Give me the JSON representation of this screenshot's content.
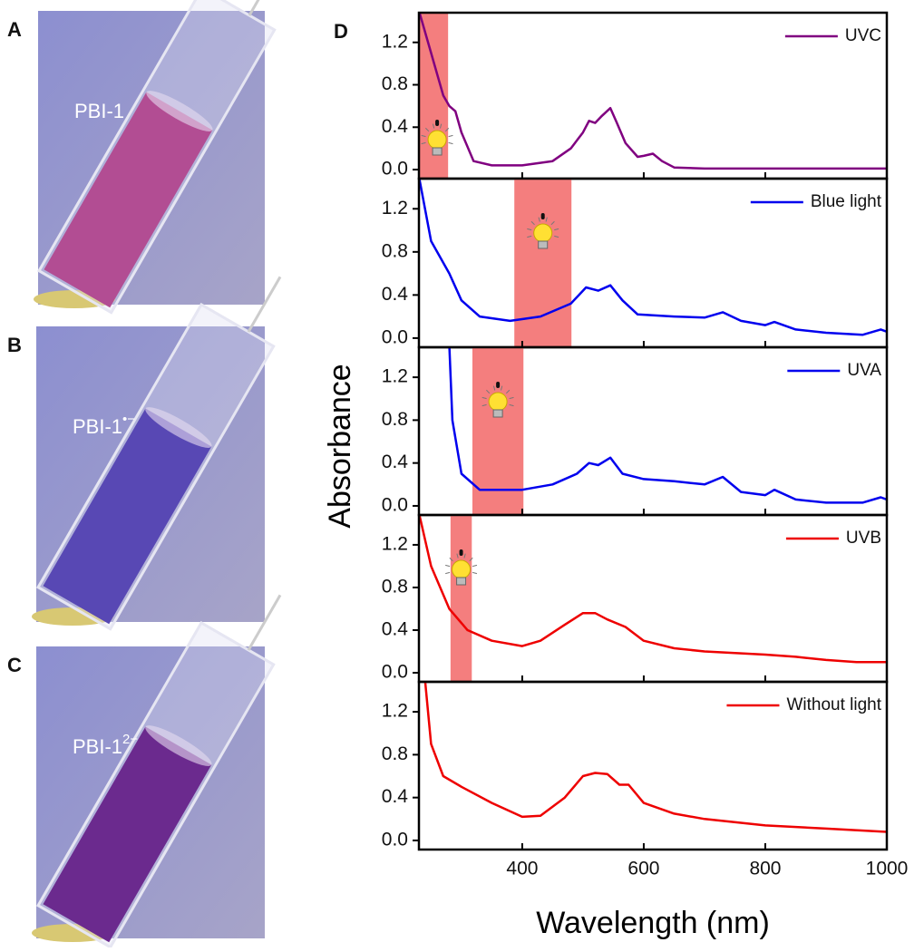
{
  "photos": [
    {
      "label": "A",
      "caption": "PBI-1"
    },
    {
      "label": "B",
      "caption": "PBI-1",
      "caption_sup": "•−"
    },
    {
      "label": "C",
      "caption": "PBI-1",
      "caption_sup": "2−"
    }
  ],
  "figure": {
    "panel_label": "D",
    "x_label": "Wavelength (nm)",
    "y_label": "Absorbance"
  },
  "chart_data": [
    {
      "type": "line",
      "xlim": [
        230,
        1000
      ],
      "xticks": [
        400,
        600,
        800,
        1000
      ],
      "ylim": [
        -0.085,
        1.48
      ],
      "yticks": [
        {
          "value": 0,
          "label": "0.0"
        },
        {
          "value": 0.4,
          "label": "0.4"
        },
        {
          "value": 0.8,
          "label": "0.8"
        },
        {
          "value": 1.2,
          "label": "1.2"
        }
      ],
      "highlight": [
        230,
        278
      ],
      "x": [
        230,
        250,
        270,
        280,
        290,
        300,
        320,
        350,
        400,
        450,
        480,
        500,
        510,
        520,
        530,
        545,
        555,
        570,
        590,
        600,
        615,
        630,
        650,
        700,
        800,
        900,
        1000
      ],
      "series": [
        {
          "name": "UVC",
          "color": "#800080",
          "values": [
            1.5,
            1.1,
            0.7,
            0.6,
            0.55,
            0.35,
            0.08,
            0.04,
            0.04,
            0.08,
            0.2,
            0.35,
            0.46,
            0.44,
            0.5,
            0.58,
            0.45,
            0.25,
            0.12,
            0.13,
            0.15,
            0.08,
            0.02,
            0.01,
            0.01,
            0.01,
            0.01
          ]
        }
      ]
    },
    {
      "type": "line",
      "xlim": [
        230,
        1000
      ],
      "xticks": [
        400,
        600,
        800,
        1000
      ],
      "ylim": [
        -0.085,
        1.48
      ],
      "yticks": [
        {
          "value": 0,
          "label": "0.0"
        },
        {
          "value": 0.4,
          "label": "0.4"
        },
        {
          "value": 0.8,
          "label": "0.8"
        },
        {
          "value": 1.2,
          "label": "1.2"
        }
      ],
      "highlight": [
        387,
        481
      ],
      "x": [
        230,
        250,
        280,
        300,
        330,
        380,
        430,
        480,
        505,
        525,
        545,
        565,
        590,
        650,
        700,
        730,
        760,
        800,
        815,
        850,
        900,
        960,
        990,
        1000
      ],
      "series": [
        {
          "name": "Blue light",
          "color": "#0000ee",
          "values": [
            1.5,
            0.9,
            0.6,
            0.35,
            0.2,
            0.16,
            0.2,
            0.32,
            0.47,
            0.44,
            0.49,
            0.35,
            0.22,
            0.2,
            0.19,
            0.24,
            0.16,
            0.12,
            0.15,
            0.08,
            0.05,
            0.03,
            0.08,
            0.06
          ]
        }
      ]
    },
    {
      "type": "line",
      "xlim": [
        230,
        1000
      ],
      "xticks": [
        400,
        600,
        800,
        1000
      ],
      "ylim": [
        -0.085,
        1.48
      ],
      "yticks": [
        {
          "value": 0,
          "label": "0.0"
        },
        {
          "value": 0.4,
          "label": "0.4"
        },
        {
          "value": 0.8,
          "label": "0.8"
        },
        {
          "value": 1.2,
          "label": "1.2"
        }
      ],
      "highlight": [
        318,
        402
      ],
      "x": [
        280,
        285,
        300,
        330,
        400,
        450,
        490,
        510,
        525,
        545,
        565,
        600,
        650,
        700,
        730,
        760,
        800,
        815,
        850,
        900,
        960,
        990,
        1000
      ],
      "series": [
        {
          "name": "UVA",
          "color": "#0000ee",
          "values": [
            1.5,
            0.8,
            0.3,
            0.15,
            0.15,
            0.2,
            0.3,
            0.4,
            0.38,
            0.45,
            0.3,
            0.25,
            0.23,
            0.2,
            0.27,
            0.13,
            0.1,
            0.15,
            0.06,
            0.03,
            0.03,
            0.08,
            0.06
          ]
        }
      ]
    },
    {
      "type": "line",
      "xlim": [
        230,
        1000
      ],
      "xticks": [
        400,
        600,
        800,
        1000
      ],
      "ylim": [
        -0.085,
        1.48
      ],
      "yticks": [
        {
          "value": 0,
          "label": "0.0"
        },
        {
          "value": 0.4,
          "label": "0.4"
        },
        {
          "value": 0.8,
          "label": "0.8"
        },
        {
          "value": 1.2,
          "label": "1.2"
        }
      ],
      "highlight": [
        282,
        317
      ],
      "x": [
        230,
        250,
        280,
        310,
        350,
        400,
        430,
        470,
        500,
        520,
        540,
        570,
        600,
        650,
        700,
        800,
        850,
        900,
        950,
        1000
      ],
      "series": [
        {
          "name": "UVB",
          "color": "#ee0000",
          "values": [
            1.5,
            1.0,
            0.6,
            0.4,
            0.3,
            0.25,
            0.3,
            0.45,
            0.56,
            0.56,
            0.5,
            0.43,
            0.3,
            0.23,
            0.2,
            0.17,
            0.15,
            0.12,
            0.1,
            0.1
          ]
        }
      ]
    },
    {
      "type": "line",
      "xlim": [
        230,
        1000
      ],
      "xticks": [
        400,
        600,
        800,
        1000
      ],
      "ylim": [
        -0.085,
        1.48
      ],
      "yticks": [
        {
          "value": 0,
          "label": "0.0"
        },
        {
          "value": 0.4,
          "label": "0.4"
        },
        {
          "value": 0.8,
          "label": "0.8"
        },
        {
          "value": 1.2,
          "label": "1.2"
        }
      ],
      "x": [
        240,
        250,
        270,
        300,
        350,
        400,
        430,
        470,
        500,
        520,
        540,
        560,
        575,
        600,
        650,
        700,
        800,
        900,
        1000
      ],
      "series": [
        {
          "name": "Without light",
          "color": "#ee0000",
          "values": [
            1.5,
            0.9,
            0.6,
            0.5,
            0.35,
            0.22,
            0.23,
            0.4,
            0.6,
            0.63,
            0.62,
            0.52,
            0.52,
            0.35,
            0.25,
            0.2,
            0.14,
            0.11,
            0.08
          ]
        }
      ]
    }
  ]
}
